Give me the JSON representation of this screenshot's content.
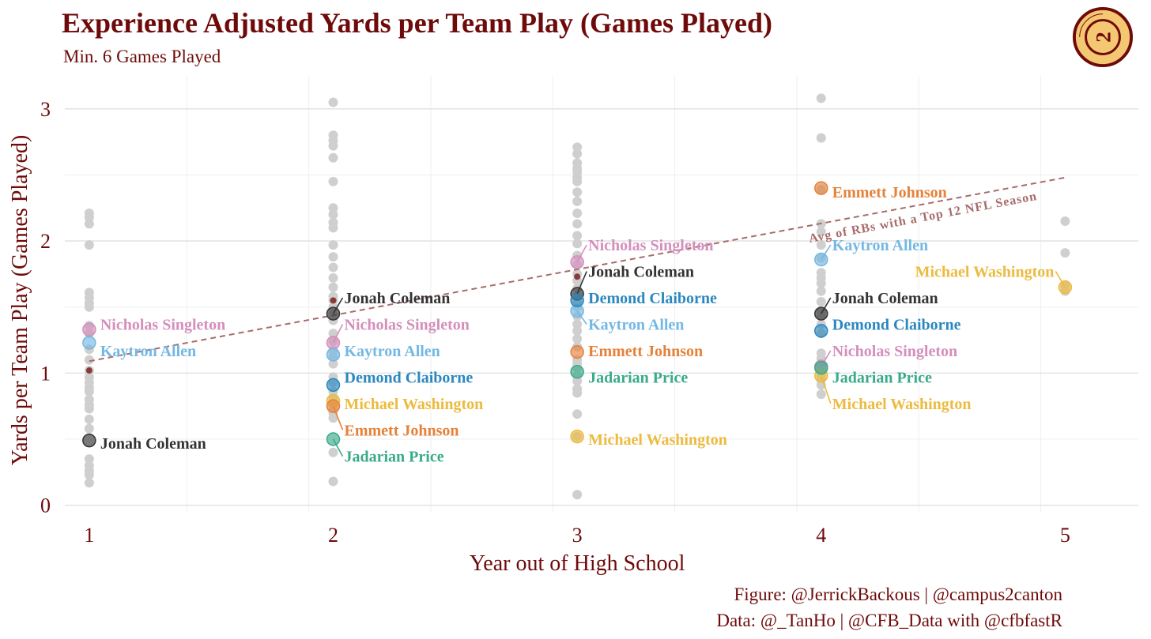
{
  "chart_data": {
    "type": "scatter",
    "title": "Experience Adjusted Yards per Team Play (Games Played)",
    "subtitle": "Min. 6 Games Played",
    "xlabel": "Year out of High School",
    "ylabel": "Yards per Team Play (Games Played)",
    "xlim": [
      0.9,
      5.3
    ],
    "ylim": [
      -0.05,
      3.25
    ],
    "x_ticks": [
      "1",
      "2",
      "3",
      "4",
      "5"
    ],
    "y_ticks": [
      "0",
      "1",
      "2",
      "3"
    ],
    "grid": true,
    "caption": [
      "Figure: @JerrickBackous | @campus2canton",
      "Data: @_TanHo | @CFB_Data with @cfbfastR"
    ],
    "logo_text": "CAMPUS 2 CANTON",
    "reference_line": {
      "label": "Avg of RBs with a Top 12 NFL Season",
      "color": "#a86b6b",
      "x": [
        1,
        5
      ],
      "y": [
        1.09,
        2.48
      ],
      "points": [
        {
          "x": 1,
          "y": 1.02
        },
        {
          "x": 2,
          "y": 1.55
        },
        {
          "x": 3,
          "y": 1.73
        }
      ]
    },
    "background_points": [
      {
        "x": 1,
        "y": [
          2.21,
          2.18,
          2.13,
          1.97,
          1.61,
          1.57,
          1.53,
          1.5,
          1.36,
          1.3,
          1.18,
          1.1,
          1.02,
          0.97,
          0.93,
          0.89,
          0.86,
          0.8,
          0.76,
          0.73,
          0.65,
          0.58,
          0.35,
          0.3,
          0.26,
          0.23,
          0.17
        ]
      },
      {
        "x": 2,
        "y": [
          3.05,
          2.8,
          2.76,
          2.72,
          2.63,
          2.45,
          2.25,
          2.2,
          2.14,
          2.1,
          1.97,
          1.88,
          1.8,
          1.72,
          1.65,
          1.58,
          1.55,
          1.5,
          1.45,
          1.4,
          1.3,
          1.24,
          1.17,
          1.12,
          1.07,
          0.97,
          0.93,
          0.86,
          0.82,
          0.79,
          0.72,
          0.7,
          0.66,
          0.4,
          0.18
        ]
      },
      {
        "x": 3,
        "y": [
          2.71,
          2.66,
          2.59,
          2.55,
          2.52,
          2.48,
          2.45,
          2.37,
          2.3,
          2.21,
          2.13,
          2.04,
          1.98,
          1.89,
          1.82,
          1.75,
          1.7,
          1.64,
          1.58,
          1.53,
          1.5,
          1.43,
          1.37,
          1.32,
          1.26,
          1.2,
          1.1,
          1.07,
          1.04,
          0.98,
          0.94,
          0.88,
          0.85,
          0.69,
          0.52,
          0.08
        ]
      },
      {
        "x": 4,
        "y": [
          3.08,
          2.78,
          2.39,
          2.13,
          2.07,
          1.97,
          1.87,
          1.76,
          1.72,
          1.68,
          1.62,
          1.54,
          1.47,
          1.43,
          1.37,
          1.3,
          1.15,
          1.11,
          1.06,
          0.98,
          0.95,
          0.91,
          0.84
        ]
      },
      {
        "x": 5,
        "y": [
          2.15,
          1.91,
          1.66,
          1.62
        ]
      }
    ],
    "players": [
      {
        "name": "Jonah Coleman",
        "color": "#333333",
        "points": [
          {
            "x": 1,
            "y": 0.49
          },
          {
            "x": 2,
            "y": 1.45
          },
          {
            "x": 3,
            "y": 1.6
          },
          {
            "x": 4,
            "y": 1.45
          }
        ]
      },
      {
        "name": "Nicholas Singleton",
        "color": "#d48fbc",
        "points": [
          {
            "x": 1,
            "y": 1.33
          },
          {
            "x": 2,
            "y": 1.23
          },
          {
            "x": 3,
            "y": 1.84
          },
          {
            "x": 4,
            "y": 1.05
          }
        ]
      },
      {
        "name": "Kaytron Allen",
        "color": "#74b8e3",
        "points": [
          {
            "x": 1,
            "y": 1.23
          },
          {
            "x": 2,
            "y": 1.14
          },
          {
            "x": 3,
            "y": 1.47
          },
          {
            "x": 4,
            "y": 1.86
          }
        ]
      },
      {
        "name": "Demond Claiborne",
        "color": "#2b88bf",
        "points": [
          {
            "x": 2,
            "y": 0.91
          },
          {
            "x": 3,
            "y": 1.55
          },
          {
            "x": 4,
            "y": 1.32
          }
        ]
      },
      {
        "name": "Michael Washington",
        "color": "#ecbb3f",
        "points": [
          {
            "x": 2,
            "y": 0.79
          },
          {
            "x": 3,
            "y": 0.52
          },
          {
            "x": 4,
            "y": 0.98
          },
          {
            "x": 5,
            "y": 1.65
          }
        ]
      },
      {
        "name": "Emmett Johnson",
        "color": "#e5823a",
        "points": [
          {
            "x": 2,
            "y": 0.75
          },
          {
            "x": 3,
            "y": 1.16
          },
          {
            "x": 4,
            "y": 2.4
          }
        ]
      },
      {
        "name": "Jadarian Price",
        "color": "#3aab8a",
        "points": [
          {
            "x": 2,
            "y": 0.5
          },
          {
            "x": 3,
            "y": 1.01
          },
          {
            "x": 4,
            "y": 1.04
          }
        ]
      }
    ],
    "point_labels": [
      {
        "player": "Nicholas Singleton",
        "x": 1,
        "label_y": 1.37,
        "align": "start"
      },
      {
        "player": "Kaytron Allen",
        "x": 1,
        "label_y": 1.17,
        "align": "start"
      },
      {
        "player": "Jonah Coleman",
        "x": 1,
        "label_y": 0.47,
        "align": "start"
      },
      {
        "player": "Jonah Coleman",
        "x": 2,
        "label_y": 1.57,
        "align": "start"
      },
      {
        "player": "Nicholas Singleton",
        "x": 2,
        "label_y": 1.37,
        "align": "start"
      },
      {
        "player": "Kaytron Allen",
        "x": 2,
        "label_y": 1.17,
        "align": "start"
      },
      {
        "player": "Demond Claiborne",
        "x": 2,
        "label_y": 0.97,
        "align": "start"
      },
      {
        "player": "Michael Washington",
        "x": 2,
        "label_y": 0.77,
        "align": "start"
      },
      {
        "player": "Emmett Johnson",
        "x": 2,
        "label_y": 0.57,
        "align": "start"
      },
      {
        "player": "Jadarian Price",
        "x": 2,
        "label_y": 0.37,
        "align": "start"
      },
      {
        "player": "Nicholas Singleton",
        "x": 3,
        "label_y": 1.97,
        "align": "start"
      },
      {
        "player": "Jonah Coleman",
        "x": 3,
        "label_y": 1.77,
        "align": "start"
      },
      {
        "player": "Demond Claiborne",
        "x": 3,
        "label_y": 1.57,
        "align": "start"
      },
      {
        "player": "Kaytron Allen",
        "x": 3,
        "label_y": 1.37,
        "align": "start"
      },
      {
        "player": "Emmett Johnson",
        "x": 3,
        "label_y": 1.17,
        "align": "start"
      },
      {
        "player": "Jadarian Price",
        "x": 3,
        "label_y": 0.97,
        "align": "start"
      },
      {
        "player": "Michael Washington",
        "x": 3,
        "label_y": 0.5,
        "align": "start"
      },
      {
        "player": "Emmett Johnson",
        "x": 4,
        "label_y": 2.37,
        "align": "start"
      },
      {
        "player": "Kaytron Allen",
        "x": 4,
        "label_y": 1.97,
        "align": "start"
      },
      {
        "player": "Jonah Coleman",
        "x": 4,
        "label_y": 1.57,
        "align": "start"
      },
      {
        "player": "Demond Claiborne",
        "x": 4,
        "label_y": 1.37,
        "align": "start"
      },
      {
        "player": "Nicholas Singleton",
        "x": 4,
        "label_y": 1.17,
        "align": "start"
      },
      {
        "player": "Jadarian Price",
        "x": 4,
        "label_y": 0.97,
        "align": "start"
      },
      {
        "player": "Michael Washington",
        "x": 4,
        "label_y": 0.77,
        "align": "start"
      },
      {
        "player": "Michael Washington",
        "x": 5,
        "label_y": 1.77,
        "align": "end"
      }
    ]
  }
}
